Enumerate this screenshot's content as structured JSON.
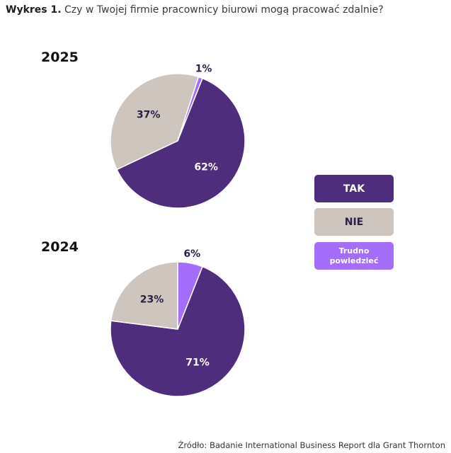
{
  "header": {
    "label": "Wykres 1.",
    "question": "Czy w Twojej firmie pracownicy biurowi mogą pracować zdalnie?"
  },
  "colors": {
    "tak": "#4e2d7c",
    "nie": "#cdc5be",
    "trudno": "#a56efa"
  },
  "legend": [
    {
      "label": "TAK",
      "color": "#4e2d7c",
      "text_color": "#ffffff"
    },
    {
      "label": "NIE",
      "color": "#cdc5be",
      "text_color": "#2a1f45"
    },
    {
      "label": "Trudno powiedzieć",
      "color": "#a56efa",
      "text_color": "#ffffff"
    }
  ],
  "chart_data": [
    {
      "type": "pie",
      "title": "2025",
      "slices": [
        {
          "category": "TAK",
          "value": 62,
          "label": "62%"
        },
        {
          "category": "NIE",
          "value": 37,
          "label": "37%"
        },
        {
          "category": "Trudno powiedzieć",
          "value": 1,
          "label": "1%"
        }
      ]
    },
    {
      "type": "pie",
      "title": "2024",
      "slices": [
        {
          "category": "TAK",
          "value": 71,
          "label": "71%"
        },
        {
          "category": "NIE",
          "value": 23,
          "label": "23%"
        },
        {
          "category": "Trudno powiedzieć",
          "value": 6,
          "label": "6%"
        }
      ]
    }
  ],
  "source": "Źródło: Badanie International Business Report dla Grant Thornton"
}
